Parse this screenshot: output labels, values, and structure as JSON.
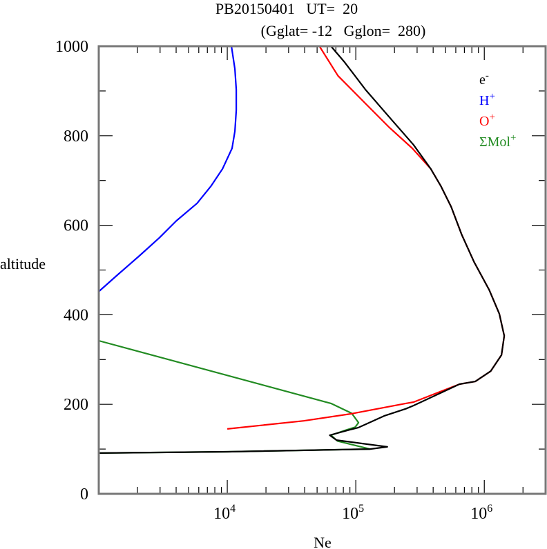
{
  "chart_data": {
    "type": "line",
    "title_line1": "PB20150401   UT=  20",
    "title_line2": "(Gglat= -12   Gglon=  280)",
    "xlabel": "Ne",
    "ylabel": "altitude",
    "xscale": "log",
    "xlim": [
      1000,
      3000000
    ],
    "ylim": [
      0,
      1000
    ],
    "yticks": [
      0,
      200,
      400,
      600,
      800,
      1000
    ],
    "ytick_labels": [
      "0",
      "200",
      "400",
      "600",
      "800",
      "1000"
    ],
    "xticks": [
      10000,
      100000,
      1000000
    ],
    "xtick_labels": [
      {
        "base": "10",
        "exp": "4"
      },
      {
        "base": "10",
        "exp": "5"
      },
      {
        "base": "10",
        "exp": "6"
      }
    ],
    "legend_position": "top-right",
    "series": [
      {
        "name": "e",
        "sup": "-",
        "color": "#000000",
        "points": [
          [
            64100,
            1000
          ],
          [
            82000,
            964
          ],
          [
            119000,
            903
          ],
          [
            183000,
            841
          ],
          [
            281000,
            780
          ],
          [
            383000,
            726
          ],
          [
            460000,
            687
          ],
          [
            553000,
            641
          ],
          [
            667000,
            579
          ],
          [
            832000,
            518
          ],
          [
            1090000,
            456
          ],
          [
            1310000,
            402
          ],
          [
            1430000,
            353
          ],
          [
            1360000,
            310
          ],
          [
            1120000,
            274
          ],
          [
            851000,
            251
          ],
          [
            641000,
            245
          ],
          [
            281000,
            197
          ],
          [
            245000,
            190
          ],
          [
            166000,
            174
          ],
          [
            105000,
            148
          ],
          [
            89500,
            143
          ],
          [
            62700,
            131
          ],
          [
            70800,
            120
          ],
          [
            176000,
            105
          ],
          [
            129000,
            100
          ],
          [
            10100,
            94
          ],
          [
            1000,
            91
          ]
        ]
      },
      {
        "name": "H",
        "sup": "+",
        "color": "#0000ff",
        "points": [
          [
            10770,
            1000
          ],
          [
            11460,
            949
          ],
          [
            11750,
            903
          ],
          [
            11750,
            857
          ],
          [
            11460,
            810
          ],
          [
            10890,
            772
          ],
          [
            9180,
            726
          ],
          [
            7450,
            687
          ],
          [
            5820,
            649
          ],
          [
            4020,
            610
          ],
          [
            2960,
            572
          ],
          [
            2040,
            530
          ],
          [
            1410,
            490
          ],
          [
            1010,
            453
          ]
        ]
      },
      {
        "name": "O",
        "sup": "+",
        "color": "#ff0000",
        "points": [
          [
            52100,
            1000
          ],
          [
            72600,
            934
          ],
          [
            119000,
            872
          ],
          [
            183000,
            818
          ],
          [
            275000,
            772
          ],
          [
            383000,
            726
          ],
          [
            460000,
            687
          ],
          [
            553000,
            641
          ],
          [
            667000,
            579
          ],
          [
            832000,
            518
          ],
          [
            1090000,
            456
          ],
          [
            1310000,
            402
          ],
          [
            1430000,
            353
          ],
          [
            1360000,
            310
          ],
          [
            1120000,
            274
          ],
          [
            851000,
            251
          ],
          [
            641000,
            245
          ],
          [
            282000,
            205
          ],
          [
            245000,
            202
          ],
          [
            92900,
            179
          ],
          [
            39300,
            163
          ],
          [
            10000,
            145
          ]
        ]
      },
      {
        "name": "ΣMol",
        "sup": "+",
        "color": "#228b22",
        "points": [
          [
            1000,
            342
          ],
          [
            64100,
            202
          ],
          [
            92900,
            180
          ],
          [
            105000,
            159
          ],
          [
            98900,
            149
          ],
          [
            85100,
            143
          ],
          [
            64000,
            131
          ],
          [
            72000,
            118
          ],
          [
            129000,
            100
          ],
          [
            10100,
            94
          ],
          [
            1000,
            91
          ]
        ]
      }
    ]
  }
}
